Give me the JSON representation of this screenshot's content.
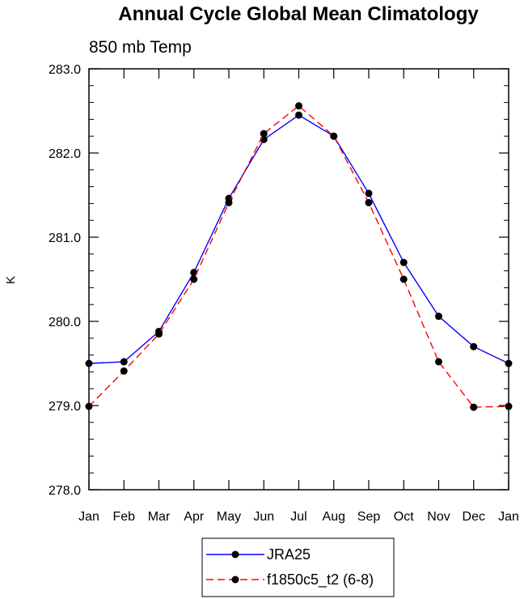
{
  "chart_data": {
    "type": "line",
    "title": "Annual Cycle Global Mean Climatology",
    "subtitle": "850 mb Temp",
    "xlabel": "",
    "ylabel": "K",
    "categories": [
      "Jan",
      "Feb",
      "Mar",
      "Apr",
      "May",
      "Jun",
      "Jul",
      "Aug",
      "Sep",
      "Oct",
      "Nov",
      "Dec",
      "Jan"
    ],
    "yticks": [
      "278.0",
      "279.0",
      "280.0",
      "281.0",
      "282.0",
      "283.0"
    ],
    "ylim": [
      278.0,
      283.0
    ],
    "grid": false,
    "legend_position": "bottom-center",
    "series": [
      {
        "name": "JRA25",
        "color": "#0000ff",
        "dash": "solid",
        "values": [
          279.5,
          279.52,
          279.88,
          280.58,
          281.46,
          282.16,
          282.45,
          282.2,
          281.52,
          280.7,
          280.06,
          279.7,
          279.5
        ]
      },
      {
        "name": "f1850c5_t2 (6-8)",
        "color": "#ff0000",
        "dash": "dashed",
        "values": [
          278.99,
          279.41,
          279.85,
          280.5,
          281.41,
          282.23,
          282.56,
          282.2,
          281.41,
          280.5,
          279.52,
          278.98,
          278.99
        ]
      }
    ]
  }
}
